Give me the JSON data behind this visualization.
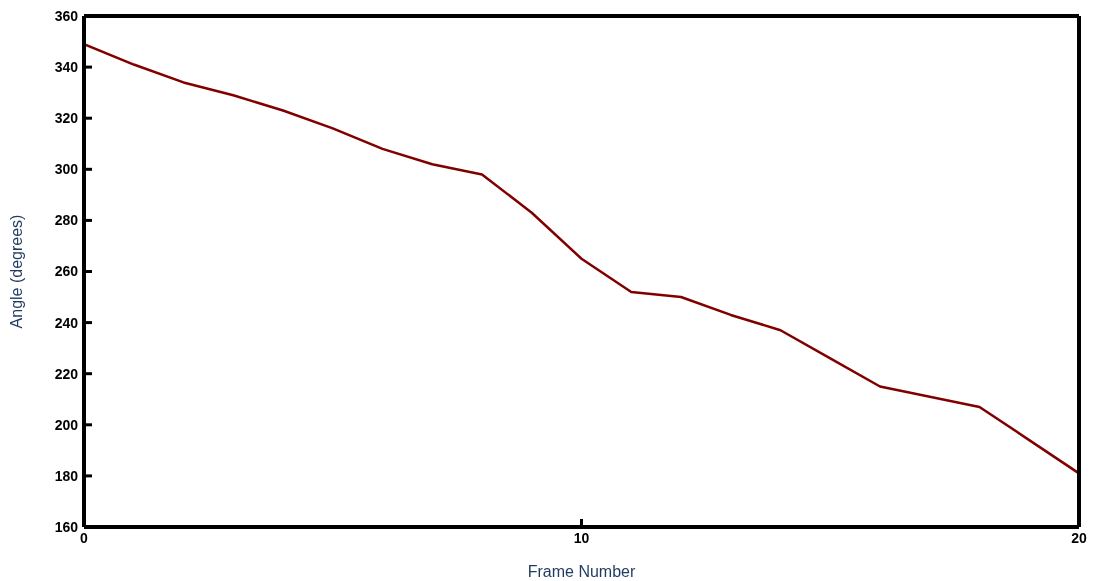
{
  "chart_data": {
    "type": "line",
    "xlabel": "Frame Number",
    "ylabel": "Angle (degrees)",
    "x": [
      0,
      1,
      2,
      3,
      4,
      5,
      6,
      7,
      8,
      9,
      10,
      11,
      12,
      13,
      14,
      15,
      16,
      17,
      18,
      19,
      20
    ],
    "series": [
      {
        "color": "#800000",
        "values": [
          349,
          341,
          334,
          329,
          323,
          316,
          308,
          302,
          298,
          283,
          265,
          252,
          250,
          243,
          237,
          226,
          215,
          211,
          207,
          194,
          181
        ]
      }
    ],
    "xlim": [
      0,
      20
    ],
    "xticks": [
      0,
      10,
      20
    ],
    "ylim": [
      160,
      360
    ],
    "yticks": [
      160,
      180,
      200,
      220,
      240,
      260,
      280,
      300,
      320,
      340,
      360
    ],
    "grid": false,
    "legend": false,
    "marker": "none",
    "line_style": "solid"
  }
}
